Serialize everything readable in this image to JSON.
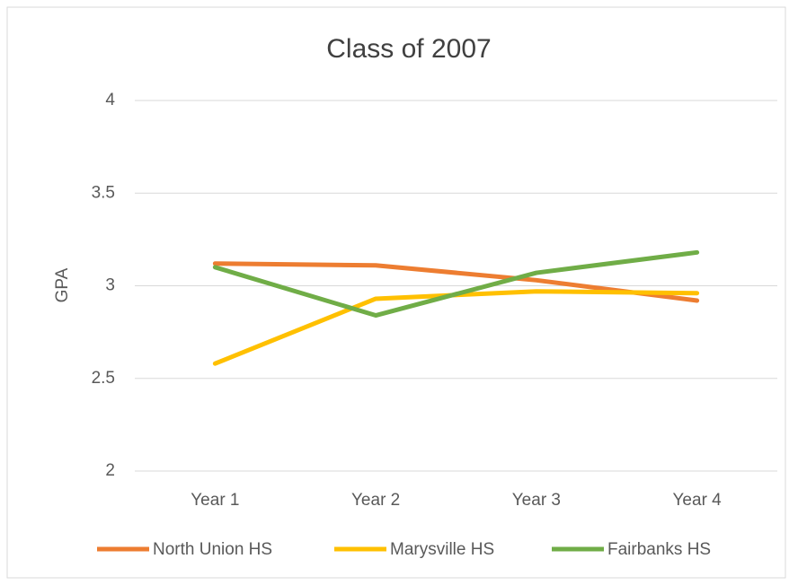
{
  "chart_data": {
    "type": "line",
    "title": "Class of 2007",
    "y_label": "GPA",
    "categories": [
      "Year 1",
      "Year 2",
      "Year 3",
      "Year 4"
    ],
    "series": [
      {
        "name": "North Union HS",
        "color": "#ed7d31",
        "values": [
          3.12,
          3.11,
          3.03,
          2.92
        ]
      },
      {
        "name": "Marysville HS",
        "color": "#ffc000",
        "values": [
          2.58,
          2.93,
          2.97,
          2.96
        ]
      },
      {
        "name": "Fairbanks HS",
        "color": "#70ad47",
        "values": [
          3.1,
          2.84,
          3.07,
          3.18
        ]
      }
    ],
    "ylim": [
      2,
      4
    ],
    "yticks": [
      2,
      2.5,
      3,
      3.5,
      4
    ],
    "grid": true,
    "legend": "bottom"
  }
}
